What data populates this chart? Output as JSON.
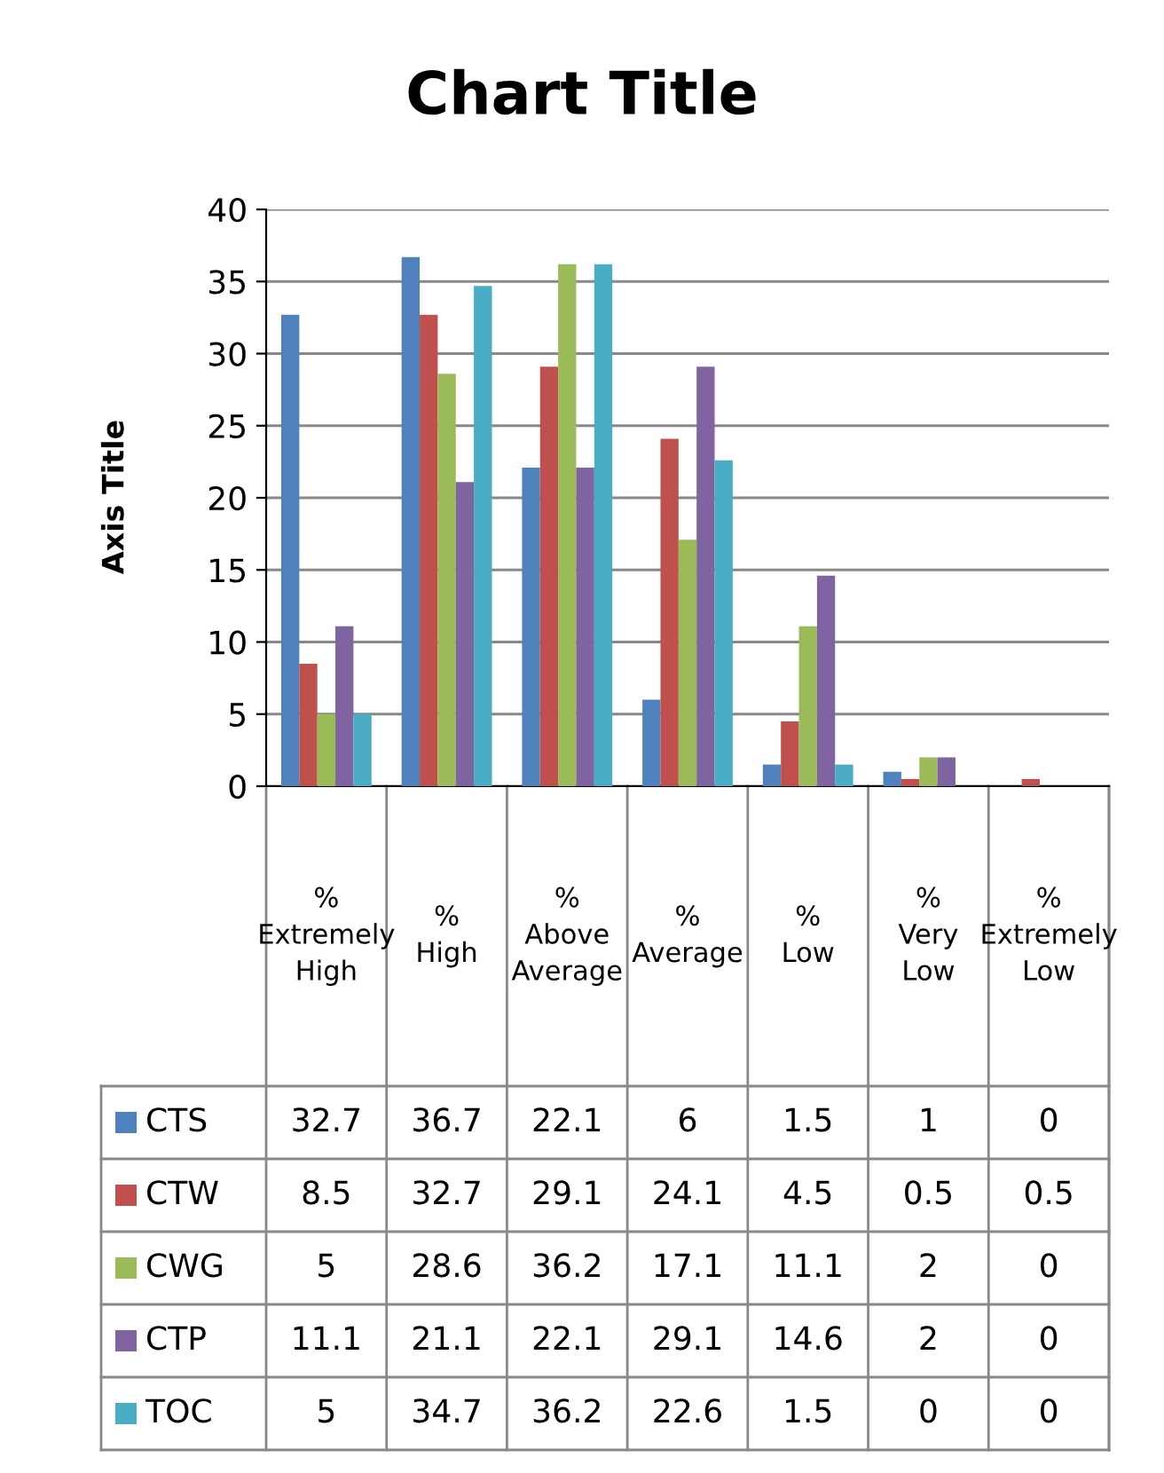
{
  "chart_data": {
    "type": "bar",
    "title": "Chart Title",
    "ylabel": "Axis Title",
    "categories": [
      "% Extremely High",
      "% High",
      "% Above Average",
      "% Average",
      "% Low",
      "% Very Low",
      "% Extremely Low"
    ],
    "series": [
      {
        "name": "CTS",
        "color": "#4f81bd",
        "values": [
          32.7,
          36.7,
          22.1,
          6,
          1.5,
          1,
          0
        ]
      },
      {
        "name": "CTW",
        "color": "#c0504d",
        "values": [
          8.5,
          32.7,
          29.1,
          24.1,
          4.5,
          0.5,
          0.5
        ]
      },
      {
        "name": "CWG",
        "color": "#9bbb59",
        "values": [
          5,
          28.6,
          36.2,
          17.1,
          11.1,
          2,
          0
        ]
      },
      {
        "name": "CTP",
        "color": "#8064a2",
        "values": [
          11.1,
          21.1,
          22.1,
          29.1,
          14.6,
          2,
          0
        ]
      },
      {
        "name": "TOC",
        "color": "#4bacc6",
        "values": [
          5,
          34.7,
          36.2,
          22.6,
          1.5,
          0,
          0
        ]
      }
    ],
    "ylim": [
      0,
      40
    ],
    "yticks": [
      0,
      5,
      10,
      15,
      20,
      25,
      30,
      35,
      40
    ],
    "grid": "y",
    "data_labels": true,
    "legend": "bottom left"
  }
}
